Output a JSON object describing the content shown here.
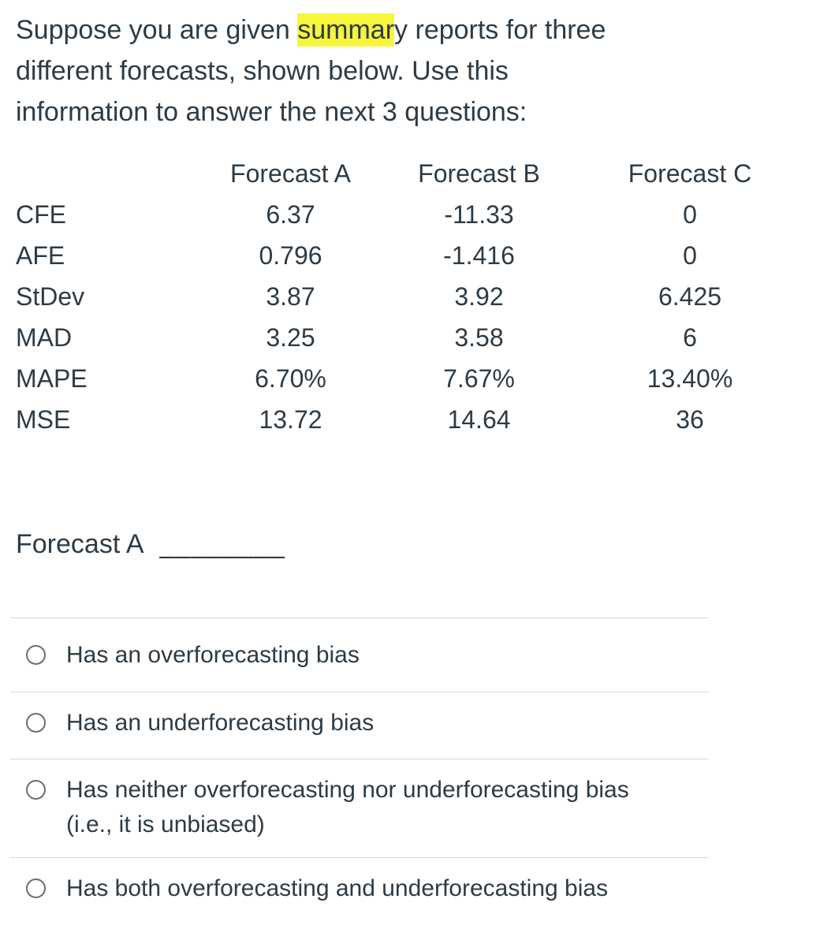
{
  "intro": {
    "line1_pre": "Suppose you are given ",
    "line1_highlight": "summar",
    "line1_post": "y reports for three",
    "line2": "different forecasts, shown below. Use this",
    "line3": "information to answer the next 3 questions:"
  },
  "table": {
    "col_headers": [
      "Forecast A",
      "Forecast B",
      "Forecast C"
    ],
    "rows": [
      {
        "label": "CFE",
        "forecast_a": "6.37",
        "forecast_b": "-11.33",
        "forecast_c": "0"
      },
      {
        "label": "AFE",
        "forecast_a": "0.796",
        "forecast_b": "-1.416",
        "forecast_c": "0"
      },
      {
        "label": "StDev",
        "forecast_a": "3.87",
        "forecast_b": "3.92",
        "forecast_c": "6.425"
      },
      {
        "label": "MAD",
        "forecast_a": "3.25",
        "forecast_b": "3.58",
        "forecast_c": "6"
      },
      {
        "label": "MAPE",
        "forecast_a": "6.70%",
        "forecast_b": "7.67%",
        "forecast_c": "13.40%"
      },
      {
        "label": "MSE",
        "forecast_a": "13.72",
        "forecast_b": "14.64",
        "forecast_c": "36"
      }
    ]
  },
  "question": {
    "label": "Forecast A",
    "blank": "________"
  },
  "options": [
    {
      "lines": [
        "Has an overforecasting bias"
      ]
    },
    {
      "lines": [
        "Has an underforecasting bias"
      ]
    },
    {
      "lines": [
        "Has neither overforecasting nor underforecasting bias",
        "(i.e., it is unbiased)"
      ]
    },
    {
      "lines": [
        "Has both overforecasting and underforecasting bias"
      ]
    }
  ],
  "colors": {
    "text": "#2d3b45",
    "highlight": "#f7f53c",
    "divider": "#d9d9d9",
    "radio_border": "#6e6e6e"
  }
}
